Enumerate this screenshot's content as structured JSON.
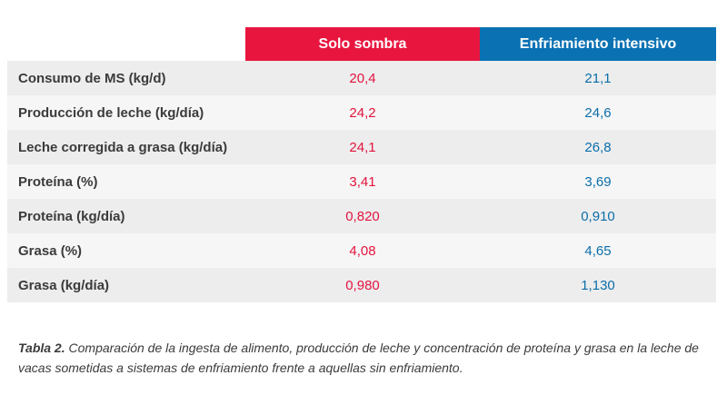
{
  "table": {
    "headers": [
      "",
      "Solo sombra",
      "Enfriamiento intensivo"
    ],
    "rows": [
      {
        "label": "Consumo de MS (kg/d)",
        "sombra": "20,4",
        "enfriamiento": "21,1"
      },
      {
        "label": "Producción de leche (kg/día)",
        "sombra": "24,2",
        "enfriamiento": "24,6"
      },
      {
        "label": "Leche corregida a grasa (kg/día)",
        "sombra": "24,1",
        "enfriamiento": "26,8"
      },
      {
        "label": "Proteína (%)",
        "sombra": "3,41",
        "enfriamiento": "3,69"
      },
      {
        "label": "Proteína (kg/día)",
        "sombra": "0,820",
        "enfriamiento": "0,910"
      },
      {
        "label": "Grasa (%)",
        "sombra": "4,08",
        "enfriamiento": "4,65"
      },
      {
        "label": "Grasa (kg/día)",
        "sombra": "0,980",
        "enfriamiento": "1,130"
      }
    ]
  },
  "caption": {
    "label": "Tabla 2.",
    "text": " Comparación de la ingesta de alimento, producción de leche y concentración de proteína y grasa en la leche de vacas sometidas a sistemas de enfriamiento frente a aquellas sin enfriamiento."
  },
  "colors": {
    "sombra": "#e8163f",
    "enfriamiento": "#0a71b3"
  }
}
